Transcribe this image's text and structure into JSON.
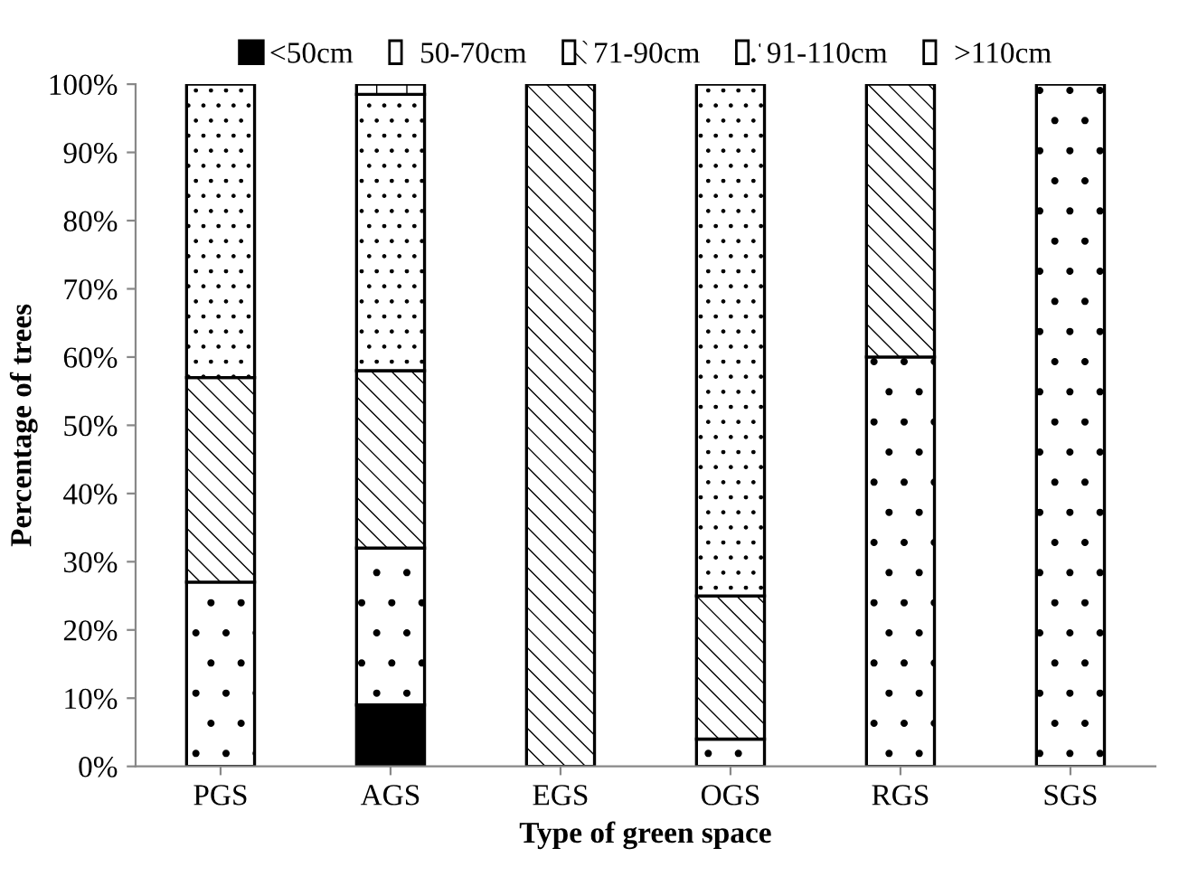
{
  "chart_data": {
    "type": "bar",
    "stacked": true,
    "xlabel": "Type of green space",
    "ylabel": "Percentage of trees",
    "categories": [
      "PGS",
      "AGS",
      "EGS",
      "OGS",
      "RGS",
      "SGS"
    ],
    "series": [
      {
        "name": "<50cm",
        "color": "#000000",
        "values": [
          0,
          9,
          0,
          0,
          0,
          0
        ]
      },
      {
        "name": "50-70cm",
        "color": "#ffffff",
        "values": [
          27,
          23,
          0,
          4,
          60,
          100
        ]
      },
      {
        "name": "71-90cm",
        "color": "#ffffff",
        "values": [
          30,
          26,
          100,
          21,
          40,
          0
        ]
      },
      {
        "name": "91-110cm",
        "color": "#ffffff",
        "values": [
          43,
          40.5,
          0,
          75,
          0,
          0
        ]
      },
      {
        "name": ">110cm",
        "color": "#ffffff",
        "values": [
          0,
          1.5,
          0,
          0,
          0,
          0
        ]
      }
    ],
    "ylim": [
      0,
      100
    ],
    "yticks": [
      {
        "value": 0,
        "label": "0%"
      },
      {
        "value": 10,
        "label": "10%"
      },
      {
        "value": 20,
        "label": "20%"
      },
      {
        "value": 30,
        "label": "30%"
      },
      {
        "value": 40,
        "label": "40%"
      },
      {
        "value": 50,
        "label": "50%"
      },
      {
        "value": 60,
        "label": "60%"
      },
      {
        "value": 70,
        "label": "70%"
      },
      {
        "value": 80,
        "label": "80%"
      },
      {
        "value": 90,
        "label": "90%"
      },
      {
        "value": 100,
        "label": "100%"
      }
    ],
    "grid": false,
    "legend": "top"
  }
}
